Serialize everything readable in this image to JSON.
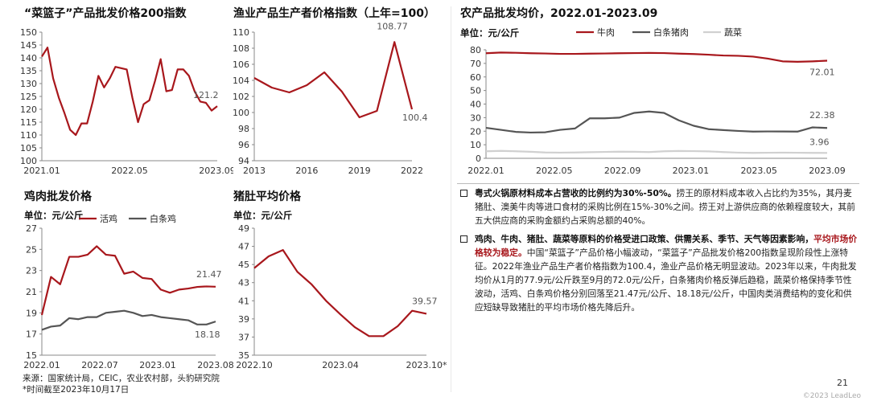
{
  "colors": {
    "red": "#a8171c",
    "gray": "#555555",
    "light": "#d0d0d0"
  },
  "source_line": "来源：国家统计局，CEIC，农业农村部，头豹研究院",
  "note_line": "*时间截至2023年10月17日",
  "page_number": "21",
  "copyright": "©2023 LeadLeo",
  "bullets": [
    {
      "lead": "粤式火锅原材料成本占营收的比例约为30%-50%。",
      "body": "捞王的原材料成本收入占比约为35%，其丹麦猪肚、澳美牛肉等进口食材的采购比例在15%-30%之间。捞王对上游供应商的依赖程度较大，其前五大供应商的采购金额约占采购总额的40%。",
      "red": "",
      "tail": ""
    },
    {
      "lead": "鸡肉、牛肉、猪肚、蔬菜等原料的价格受进口政策、供需关系、季节、天气等因素影响，",
      "body": "",
      "red": "平均市场价格较为稳定。",
      "tail": "中国“菜篮子”产品价格小幅波动，“菜篮子”产品批发价格200指数呈现阶段性上涨特征。2022年渔业产品生产者价格指数为100.4，渔业产品价格无明显波动。2023年以来，牛肉批发均价从1月的77.9元/公斤跌至9月的72.0元/公斤，白条猪肉价格反弹后趋稳，蔬菜价格保持季节性波动，活鸡、白条鸡价格分别回落至21.47元/公斤、18.18元/公斤，中国肉类消费结构的变化和供应短缺导致猪肚的平均市场价格先降后升。"
    }
  ],
  "chart_data": [
    {
      "id": "basket",
      "type": "line",
      "title": "“菜篮子”产品批发价格200指数",
      "unit": "",
      "xlabels": [
        "2021.01",
        "2022.05",
        "2023.09"
      ],
      "ylim": [
        100,
        150
      ],
      "yticks": [
        100,
        105,
        110,
        115,
        120,
        125,
        130,
        135,
        140,
        145,
        150
      ],
      "series": [
        {
          "name": "",
          "color": "#a8171c",
          "values": [
            140.5,
            144,
            132,
            124.5,
            118.5,
            112,
            110,
            114.5,
            114.5,
            123,
            133,
            128.5,
            132,
            136.5,
            136,
            135.5,
            124.5,
            115,
            122,
            123.5,
            131,
            139.5,
            127,
            127.5,
            135.5,
            135.5,
            133,
            127,
            123,
            122.5,
            119.5,
            121.2
          ]
        }
      ],
      "end_labels": [
        {
          "text": "121.2",
          "series": 0
        }
      ]
    },
    {
      "id": "fishery",
      "type": "line",
      "title": "渔业产品生产者价格指数（上年=100）",
      "unit": "",
      "xlabels": [
        "2013",
        "2016",
        "2019",
        "2022"
      ],
      "xvalues": [
        2013,
        2014,
        2015,
        2016,
        2017,
        2018,
        2019,
        2020,
        2021,
        2022
      ],
      "ylim": [
        94,
        110
      ],
      "yticks": [
        94,
        96,
        98,
        100,
        102,
        104,
        106,
        108,
        110
      ],
      "series": [
        {
          "name": "",
          "color": "#a8171c",
          "values": [
            104.3,
            103.1,
            102.5,
            103.4,
            105.0,
            102.6,
            99.4,
            100.2,
            108.77,
            100.4
          ]
        }
      ],
      "end_labels": [
        {
          "text": "108.77",
          "series": 0,
          "index": 8
        },
        {
          "text": "100.4",
          "series": 0,
          "index": 9
        }
      ]
    },
    {
      "id": "agri",
      "type": "line",
      "title": "农产品批发均价，2022.01-2023.09",
      "unit": "单位：元/公斤",
      "xlabels": [
        "2022.01",
        "2022.05",
        "2022.09",
        "2023.01",
        "2023.05",
        "2023.09"
      ],
      "ylim": [
        0,
        80
      ],
      "yticks": [
        0,
        10,
        20,
        30,
        40,
        50,
        60,
        70,
        80
      ],
      "series": [
        {
          "name": "牛肉",
          "color": "#a8171c",
          "values": [
            77.5,
            78,
            77.8,
            77.5,
            77.3,
            77,
            77,
            77.2,
            77.3,
            77.5,
            77.6,
            77.7,
            77.6,
            77.2,
            76.9,
            76.4,
            75.8,
            75.6,
            75,
            73.5,
            71.5,
            71.2,
            71.5,
            72.01
          ]
        },
        {
          "name": "白条猪肉",
          "color": "#555555",
          "values": [
            22.5,
            21,
            19.5,
            19,
            19.2,
            21,
            22,
            29.5,
            29.5,
            30,
            33.5,
            34.5,
            33.5,
            28,
            24,
            21.5,
            20.8,
            20.2,
            19.7,
            19.8,
            19.8,
            19.7,
            22.8,
            22.38
          ]
        },
        {
          "name": "蔬菜",
          "color": "#d0d0d0",
          "values": [
            5.2,
            5.5,
            5.2,
            4.8,
            4.3,
            4.2,
            4.3,
            4.5,
            4.7,
            4.9,
            4.8,
            4.6,
            5.2,
            5.4,
            5.3,
            5.1,
            4.6,
            4.2,
            4.0,
            4.1,
            4.2,
            4.1,
            4.0,
            3.96
          ]
        }
      ],
      "end_labels": [
        {
          "text": "72.01",
          "series": 0
        },
        {
          "text": "22.38",
          "series": 1
        },
        {
          "text": "3.96",
          "series": 2
        }
      ]
    },
    {
      "id": "chicken",
      "type": "line",
      "title": "鸡肉批发价格",
      "unit": "单位：元/公斤",
      "xlabels": [
        "2022.01",
        "2022.07",
        "2023.01",
        "2023.08"
      ],
      "ylim": [
        15,
        27
      ],
      "yticks": [
        15,
        17,
        19,
        21,
        23,
        25,
        27
      ],
      "series": [
        {
          "name": "活鸡",
          "color": "#a8171c",
          "values": [
            18.8,
            22.4,
            21.7,
            24.3,
            24.3,
            24.5,
            25.3,
            24.5,
            24.4,
            22.7,
            22.9,
            22.3,
            22.2,
            21.2,
            20.9,
            21.2,
            21.3,
            21.45,
            21.5,
            21.47
          ]
        },
        {
          "name": "白条鸡",
          "color": "#555555",
          "values": [
            17.4,
            17.7,
            17.8,
            18.5,
            18.4,
            18.6,
            18.6,
            19.0,
            19.1,
            19.2,
            19.0,
            18.7,
            18.8,
            18.6,
            18.5,
            18.4,
            18.3,
            17.9,
            17.9,
            18.18
          ]
        }
      ],
      "end_labels": [
        {
          "text": "21.47",
          "series": 0
        },
        {
          "text": "18.18",
          "series": 1
        }
      ]
    },
    {
      "id": "tripe",
      "type": "line",
      "title": "猪肚平均价格",
      "unit": "单位：元/公斤",
      "xlabels": [
        "2022.10",
        "2023.04",
        "2023.10*"
      ],
      "ylim": [
        35,
        49
      ],
      "yticks": [
        35,
        37,
        39,
        41,
        43,
        45,
        47,
        49
      ],
      "series": [
        {
          "name": "",
          "color": "#a8171c",
          "values": [
            44.6,
            45.9,
            46.6,
            44.2,
            42.8,
            41.0,
            39.5,
            38.1,
            37.1,
            37.1,
            38.2,
            39.9,
            39.57
          ]
        }
      ],
      "end_labels": [
        {
          "text": "39.57",
          "series": 0
        }
      ]
    }
  ]
}
